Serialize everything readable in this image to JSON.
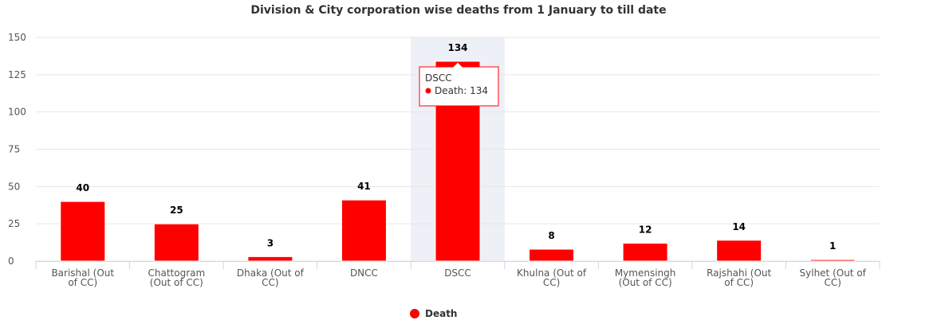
{
  "chart_data": {
    "type": "bar",
    "title": "Division & City corporation wise deaths from 1 January to till date",
    "categories": [
      "Barishal (Out of CC)",
      "Chattogram (Out of CC)",
      "Dhaka (Out of CC)",
      "DNCC",
      "DSCC",
      "Khulna (Out of CC)",
      "Mymensingh (Out of CC)",
      "Rajshahi (Out of CC)",
      "Sylhet (Out of CC)"
    ],
    "series": [
      {
        "name": "Death",
        "color": "#ff0000",
        "values": [
          40,
          25,
          3,
          41,
          134,
          8,
          12,
          14,
          1
        ]
      }
    ],
    "ylim": [
      0,
      150
    ],
    "yticks": [
      0,
      25,
      50,
      75,
      100,
      125,
      150
    ],
    "grid": true,
    "legend": "bottom",
    "tooltip": {
      "title": "DSCC",
      "text": "Death: 134"
    }
  }
}
